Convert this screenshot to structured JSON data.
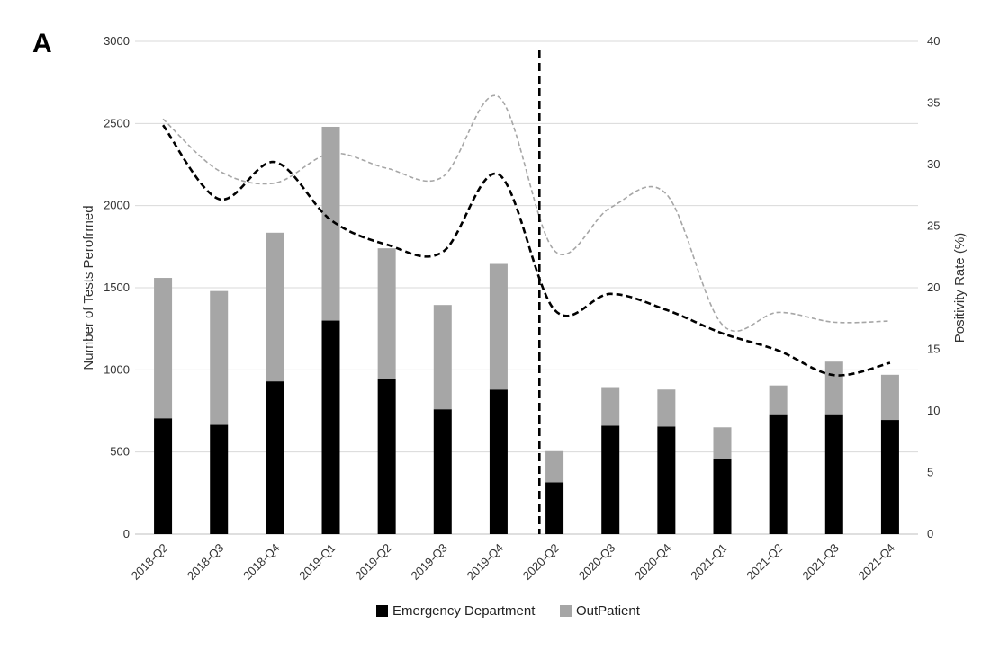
{
  "panel_label": "A",
  "chart_data": {
    "type": "bar",
    "stacked": true,
    "categories": [
      "2018-Q2",
      "2018-Q3",
      "2018-Q4",
      "2019-Q1",
      "2019-Q2",
      "2019-Q3",
      "2019-Q4",
      "2020-Q2",
      "2020-Q3",
      "2020-Q4",
      "2021-Q1",
      "2021-Q2",
      "2021-Q3",
      "2021-Q4"
    ],
    "series": [
      {
        "name": "Emergency Department",
        "color": "#000000",
        "values": [
          705,
          665,
          930,
          1300,
          945,
          760,
          880,
          315,
          660,
          655,
          455,
          730,
          730,
          695
        ]
      },
      {
        "name": "OutPatient",
        "color": "#a6a6a6",
        "values": [
          855,
          815,
          905,
          1180,
          795,
          635,
          765,
          190,
          235,
          225,
          195,
          175,
          320,
          275
        ]
      }
    ],
    "lines": [
      {
        "color": "#000000",
        "style": "dashed",
        "axis": "right",
        "values": [
          33.2,
          27.2,
          30.2,
          25.5,
          23.5,
          22.9,
          29.2,
          18.2,
          19.5,
          18.2,
          16.3,
          14.9,
          12.9,
          13.9
        ]
      },
      {
        "color": "#a6a6a6",
        "style": "dashed",
        "axis": "right",
        "values": [
          33.7,
          29.5,
          28.5,
          30.9,
          29.7,
          29.0,
          35.5,
          23.0,
          26.5,
          27.6,
          17.0,
          18.0,
          17.2,
          17.3
        ]
      }
    ],
    "marker_line": {
      "category_index": 7,
      "label": ""
    },
    "ylabel": "Number of Tests Perofrmed",
    "ylim": [
      0,
      3000
    ],
    "yticks": [
      "0",
      "500",
      "1000",
      "1500",
      "2000",
      "2500",
      "3000"
    ],
    "y2label": "Positivity Rate (%)",
    "y2lim": [
      0,
      40
    ],
    "y2ticks": [
      "0",
      "5",
      "10",
      "15",
      "20",
      "25",
      "30",
      "35",
      "40"
    ],
    "grid": true,
    "legend_position": "bottom"
  }
}
